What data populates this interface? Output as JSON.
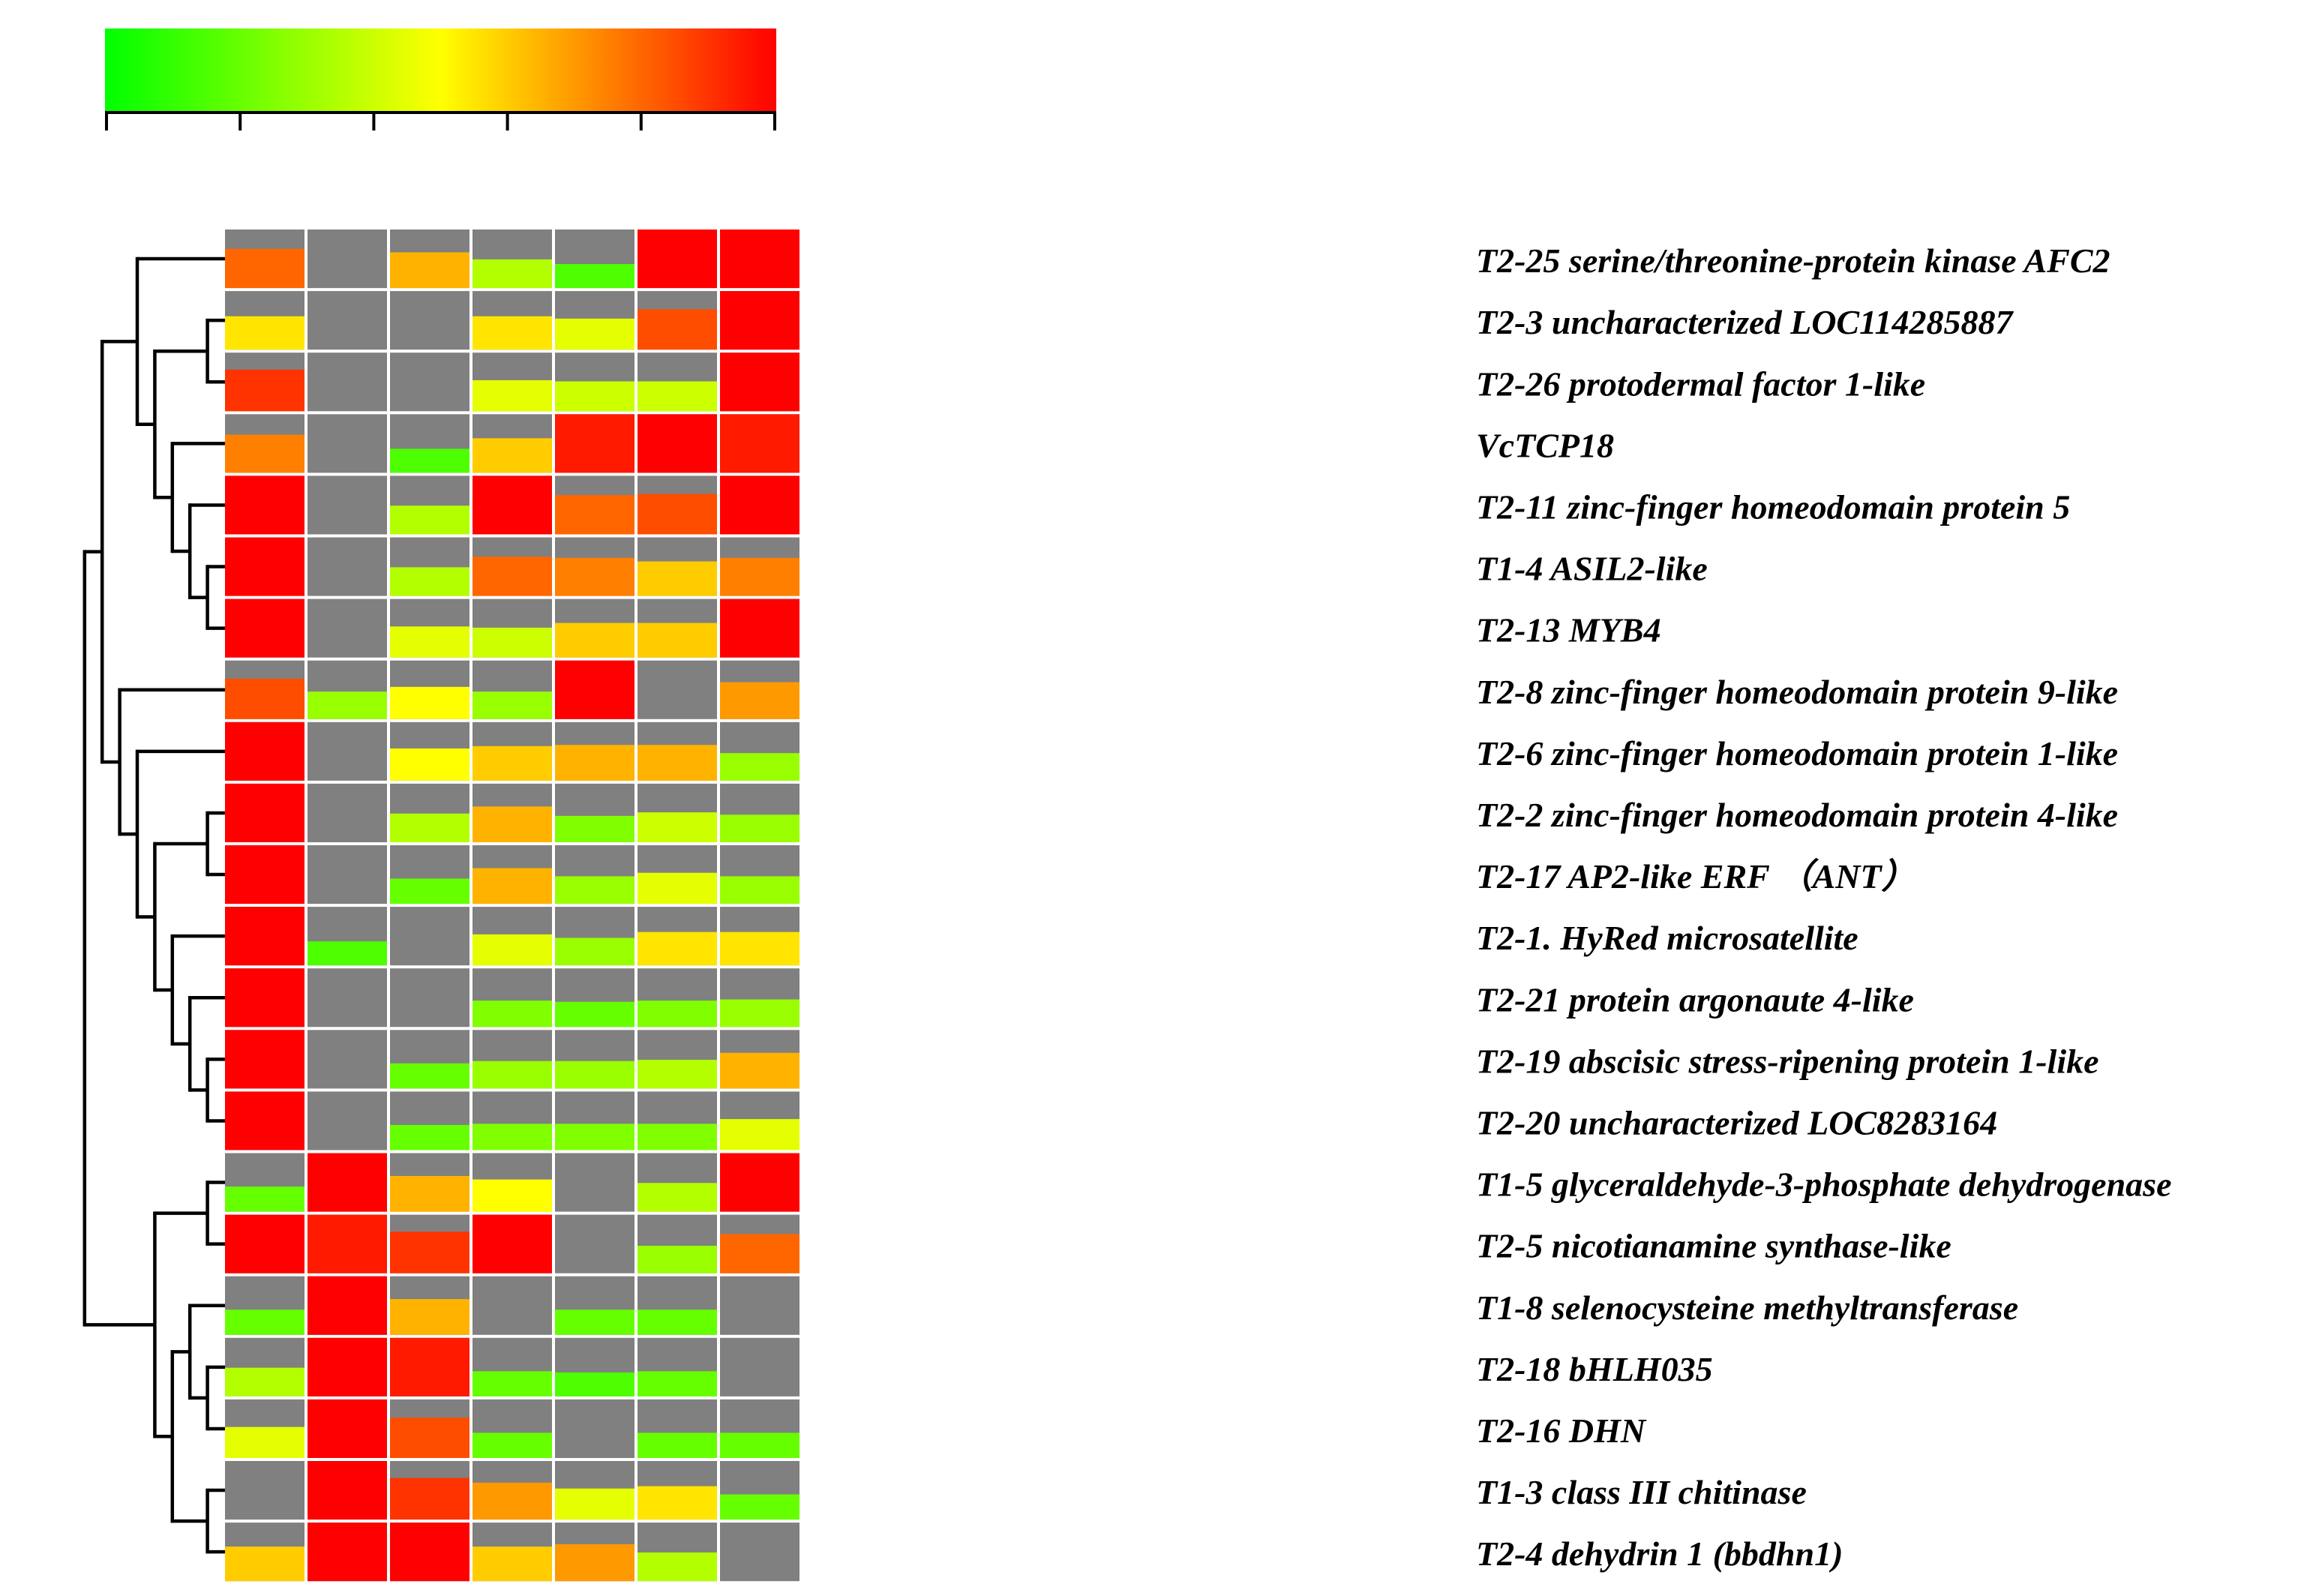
{
  "chart_data": {
    "type": "heatmap",
    "title": "",
    "colorscale": {
      "colors": [
        "#00ff00",
        "#ffff00",
        "#ff0000"
      ],
      "ticks": 6
    },
    "columns": 7,
    "rows": [
      {
        "label": "T2-25  serine/threonine-protein kinase AFC2",
        "values": [
          0.8,
          0.0,
          0.65,
          0.35,
          0.15,
          1.0,
          1.0
        ]
      },
      {
        "label": "T2-3   uncharacterized LOC114285887",
        "values": [
          0.55,
          0.0,
          0.0,
          0.55,
          0.45,
          0.85,
          1.0
        ]
      },
      {
        "label": "T2-26  protodermal factor 1-like",
        "values": [
          0.9,
          0.0,
          0.0,
          0.45,
          0.4,
          0.4,
          1.0
        ]
      },
      {
        "label": "VcTCP18",
        "values": [
          0.75,
          0.0,
          0.15,
          0.6,
          0.95,
          1.0,
          0.95
        ]
      },
      {
        "label": "T2-11  zinc-finger homeodomain protein 5",
        "values": [
          1.0,
          0.0,
          0.35,
          1.0,
          0.8,
          0.85,
          1.0
        ]
      },
      {
        "label": "T1-4   ASIL2-like",
        "values": [
          1.0,
          0.0,
          0.35,
          0.8,
          0.75,
          0.6,
          0.75
        ]
      },
      {
        "label": "T2-13  MYB4",
        "values": [
          1.0,
          0.0,
          0.45,
          0.4,
          0.6,
          0.6,
          1.0
        ]
      },
      {
        "label": "T2-8   zinc-finger homeodomain protein 9-like",
        "values": [
          0.85,
          0.3,
          0.5,
          0.3,
          1.0,
          0.0,
          0.7
        ]
      },
      {
        "label": "T2-6   zinc-finger homeodomain protein 1-like",
        "values": [
          1.0,
          0.0,
          0.5,
          0.6,
          0.65,
          0.65,
          0.3
        ]
      },
      {
        "label": "T2-2   zinc-finger homeodomain protein 4-like",
        "values": [
          1.0,
          0.0,
          0.35,
          0.65,
          0.25,
          0.4,
          0.3
        ]
      },
      {
        "label": "T2-17  AP2-like ERF  （ANT）",
        "values": [
          1.0,
          0.0,
          0.2,
          0.65,
          0.3,
          0.45,
          0.3
        ]
      },
      {
        "label": "T2-1.  HyRed microsatellite",
        "values": [
          1.0,
          0.15,
          0.0,
          0.45,
          0.3,
          0.55,
          0.55
        ]
      },
      {
        "label": "T2-21  protein argonaute 4-like",
        "values": [
          1.0,
          0.0,
          0.0,
          0.25,
          0.2,
          0.25,
          0.3
        ]
      },
      {
        "label": "T2-19  abscisic stress-ripening protein 1-like",
        "values": [
          1.0,
          0.0,
          0.2,
          0.3,
          0.3,
          0.35,
          0.65
        ]
      },
      {
        "label": "T2-20  uncharacterized LOC8283164",
        "values": [
          1.0,
          0.0,
          0.2,
          0.25,
          0.25,
          0.25,
          0.45
        ]
      },
      {
        "label": "T1-5   glyceraldehyde-3-phosphate dehydrogenase",
        "values": [
          0.2,
          1.0,
          0.65,
          0.5,
          0.0,
          0.35,
          1.0
        ]
      },
      {
        "label": "T2-5   nicotianamine synthase-like",
        "values": [
          1.0,
          0.95,
          0.9,
          1.0,
          0.0,
          0.3,
          0.8
        ]
      },
      {
        "label": "T1-8   selenocysteine methyltransferase",
        "values": [
          0.2,
          1.0,
          0.65,
          0.0,
          0.2,
          0.2,
          0.0
        ]
      },
      {
        "label": "T2-18  bHLH035",
        "values": [
          0.35,
          1.0,
          0.95,
          0.2,
          0.15,
          0.2,
          0.0
        ]
      },
      {
        "label": "T2-16  DHN",
        "values": [
          0.45,
          1.0,
          0.85,
          0.2,
          0.0,
          0.2,
          0.2
        ]
      },
      {
        "label": "T1-3   class III chitinase",
        "values": [
          0.0,
          1.0,
          0.9,
          0.7,
          0.45,
          0.55,
          0.2
        ]
      },
      {
        "label": "T2-4   dehydrin 1 (bbdhn1)",
        "values": [
          0.6,
          1.0,
          1.0,
          0.6,
          0.7,
          0.35,
          0.0
        ]
      }
    ],
    "dendrogram": {
      "depth_max": 10,
      "tree": [
        [
          [
            0,
            [
              [
                1,
                2
              ],
              [
                3,
                [
                  4,
                  [
                    5,
                    6
                  ]
                ]
              ]
            ]
          ],
          [
            7,
            [
              8,
              [
                [
                  9,
                  10
                ],
                [
                  11,
                  [
                    12,
                    [
                      13,
                      14
                    ]
                  ]
                ]
              ]
            ]
          ]
        ],
        [
          [
            15,
            16
          ],
          [
            [
              17,
              [
                18,
                19
              ]
            ],
            [
              20,
              21
            ]
          ]
        ]
      ]
    }
  }
}
